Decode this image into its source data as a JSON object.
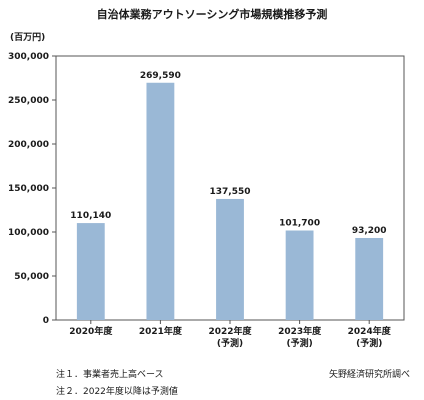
{
  "title": "自治体業務アウトソーシング市場規模推移予測",
  "unit_label": "(百万円)",
  "chart_data": {
    "type": "bar",
    "categories": [
      [
        "2020年度"
      ],
      [
        "2021年度"
      ],
      [
        "2022年度",
        "(予測)"
      ],
      [
        "2023年度",
        "(予測)"
      ],
      [
        "2024年度",
        "(予測)"
      ]
    ],
    "values": [
      110140,
      269590,
      137550,
      101700,
      93200
    ],
    "value_labels": [
      "110,140",
      "269,590",
      "137,550",
      "101,700",
      "93,200"
    ],
    "yticks": [
      0,
      50000,
      100000,
      150000,
      200000,
      250000,
      300000
    ],
    "ytick_labels": [
      "0",
      "50,000",
      "100,000",
      "150,000",
      "200,000",
      "250,000",
      "300,000"
    ],
    "ylim": [
      0,
      300000
    ],
    "bar_color": "#9ab8d6",
    "grid": false
  },
  "notes": [
    "注１．事業者売上高ベース",
    "注２．2022年度以降は予測値"
  ],
  "source": "矢野経済研究所調べ"
}
